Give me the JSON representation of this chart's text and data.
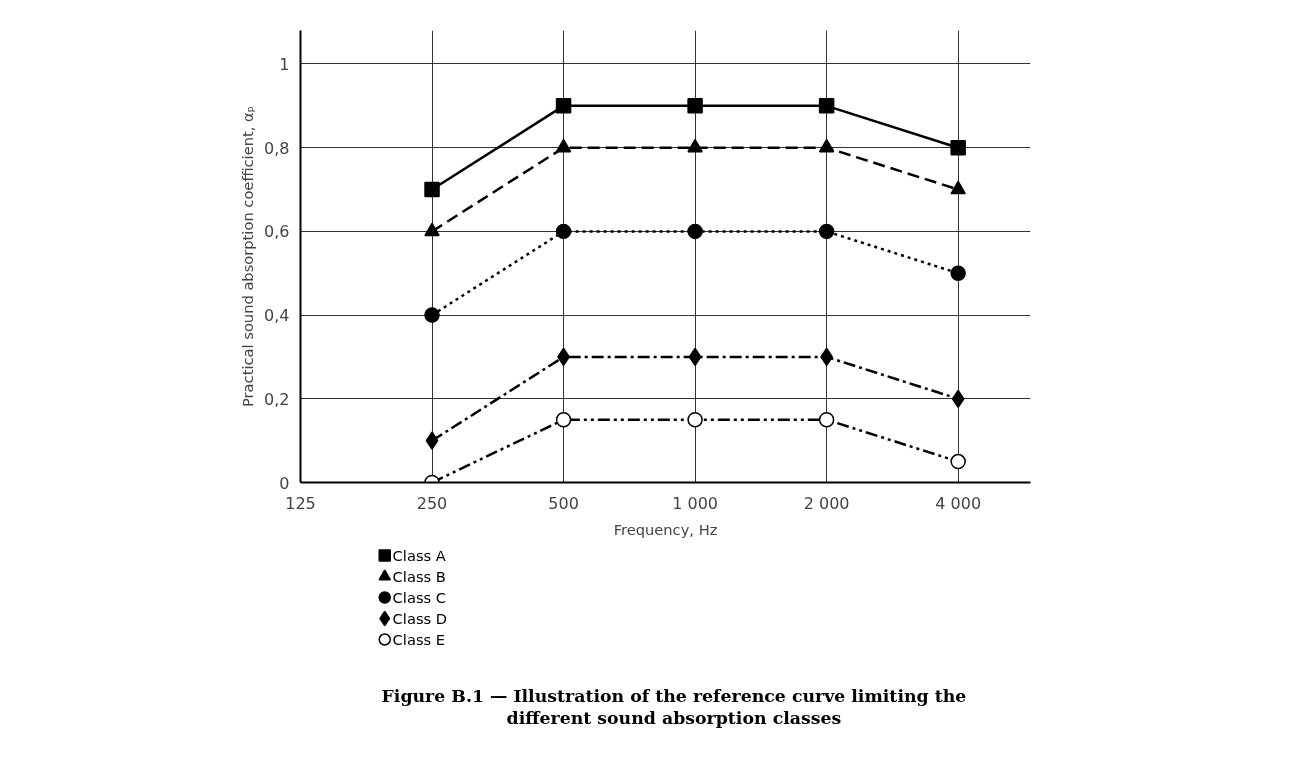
{
  "chart_data": {
    "type": "line",
    "title": "Figure B.1 — Illustration of the reference curve limiting the different sound absorption classes",
    "xlabel": "Frequency, Hz",
    "ylabel": "Practical sound absorption coefficient, αₚ",
    "categories": [
      "125",
      "250",
      "500",
      "1 000",
      "2 000",
      "4 000"
    ],
    "ylim": [
      0,
      1
    ],
    "yticks": [
      0,
      {
        "value": 0.2,
        "label": "0,2"
      },
      {
        "value": 0.4,
        "label": "0,4"
      },
      {
        "value": 0.6,
        "label": "0,6"
      },
      {
        "value": 0.8,
        "label": "0,8"
      },
      1
    ],
    "grid": true,
    "legend": "bottom",
    "series": [
      {
        "name": "Class A",
        "color": "#000000",
        "marker": "square",
        "line_style": "solid",
        "values": [
          null,
          0.7,
          0.9,
          0.9,
          0.9,
          0.8
        ]
      },
      {
        "name": "Class B",
        "color": "#000000",
        "marker": "triangle",
        "line_style": "dashed",
        "values": [
          null,
          0.6,
          0.8,
          0.8,
          0.8,
          0.7
        ]
      },
      {
        "name": "Class C",
        "color": "#000000",
        "marker": "circle",
        "line_style": "dotted",
        "values": [
          null,
          0.4,
          0.6,
          0.6,
          0.6,
          0.5
        ]
      },
      {
        "name": "Class D",
        "color": "#000000",
        "marker": "diamond",
        "line_style": "dashdot",
        "values": [
          null,
          0.1,
          0.3,
          0.3,
          0.3,
          0.2
        ]
      },
      {
        "name": "Class E",
        "color": "#000000",
        "marker": "circle_open",
        "line_style": "dashdotdot",
        "values": [
          null,
          0.0,
          0.15,
          0.15,
          0.15,
          0.05
        ]
      }
    ]
  }
}
